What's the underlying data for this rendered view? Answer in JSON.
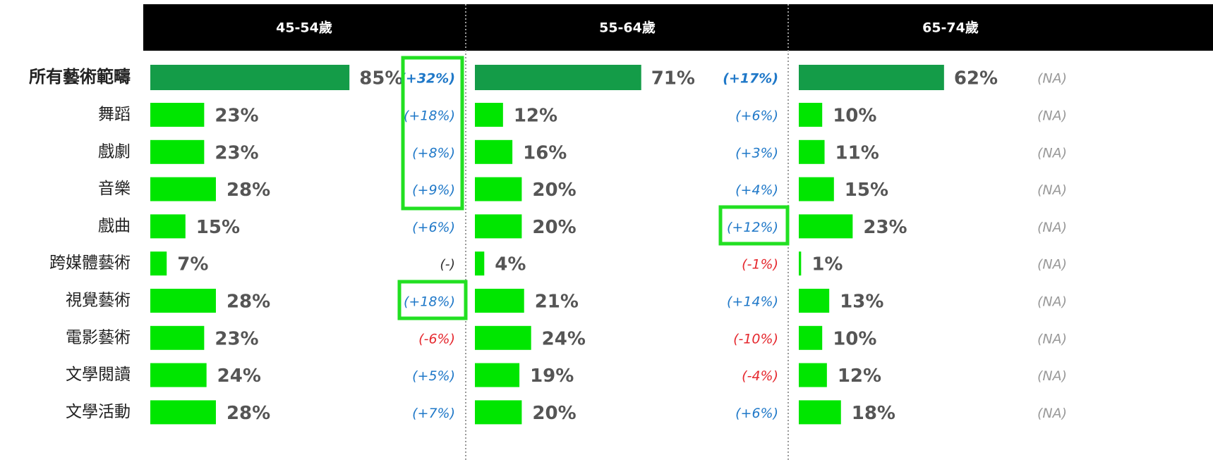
{
  "chart_data": [
    {
      "type": "bar",
      "orientation": "horizontal",
      "title": "45-54歲",
      "categories": [
        "所有藝術範疇",
        "舞蹈",
        "戲劇",
        "音樂",
        "戲曲",
        "跨媒體藝術",
        "視覺藝術",
        "電影藝術",
        "文學閱讀",
        "文學活動"
      ],
      "values": [
        85,
        23,
        23,
        28,
        15,
        7,
        28,
        23,
        24,
        28
      ],
      "value_labels": [
        "85%",
        "23%",
        "23%",
        "28%",
        "15%",
        "7%",
        "28%",
        "23%",
        "24%",
        "28%"
      ],
      "change_labels": [
        "(+32%)",
        "(+18%)",
        "(+8%)",
        "(+9%)",
        "(+6%)",
        "(-)",
        "(+18%)",
        "(-6%)",
        "(+5%)",
        "(+7%)"
      ],
      "color": "#00e600",
      "first_color": "#149c48"
    },
    {
      "type": "bar",
      "orientation": "horizontal",
      "title": "55-64歲",
      "values": [
        71,
        12,
        16,
        20,
        20,
        4,
        21,
        24,
        19,
        20
      ],
      "value_labels": [
        "71%",
        "12%",
        "16%",
        "20%",
        "20%",
        "4%",
        "21%",
        "24%",
        "19%",
        "20%"
      ],
      "change_labels": [
        "(+17%)",
        "(+6%)",
        "(+3%)",
        "(+4%)",
        "(+12%)",
        "(-1%)",
        "(+14%)",
        "(-10%)",
        "(-4%)",
        "(+6%)"
      ],
      "color": "#00e600",
      "first_color": "#149c48"
    },
    {
      "type": "bar",
      "orientation": "horizontal",
      "title": "65-74歲",
      "values": [
        62,
        10,
        11,
        15,
        23,
        1,
        13,
        10,
        12,
        18
      ],
      "value_labels": [
        "62%",
        "10%",
        "11%",
        "15%",
        "23%",
        "1%",
        "13%",
        "10%",
        "12%",
        "18%"
      ],
      "change_labels": [
        "(NA)",
        "(NA)",
        "(NA)",
        "(NA)",
        "(NA)",
        "(NA)",
        "(NA)",
        "(NA)",
        "(NA)",
        "(NA)"
      ],
      "color": "#00e600",
      "first_color": "#149c48"
    }
  ]
}
